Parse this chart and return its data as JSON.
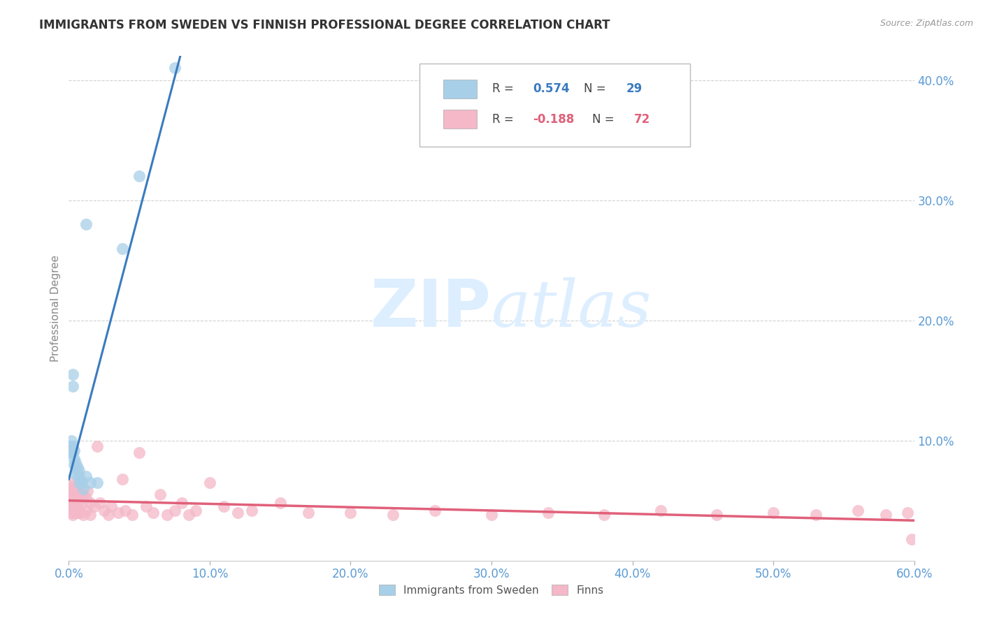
{
  "title": "IMMIGRANTS FROM SWEDEN VS FINNISH PROFESSIONAL DEGREE CORRELATION CHART",
  "source": "Source: ZipAtlas.com",
  "ylabel": "Professional Degree",
  "xlim": [
    0.0,
    0.6
  ],
  "ylim": [
    0.0,
    0.42
  ],
  "xticks": [
    0.0,
    0.1,
    0.2,
    0.3,
    0.4,
    0.5,
    0.6
  ],
  "yticks": [
    0.0,
    0.1,
    0.2,
    0.3,
    0.4
  ],
  "background_color": "#ffffff",
  "blue_color": "#a8cfe8",
  "pink_color": "#f4b8c8",
  "blue_line_color": "#3a7bbf",
  "pink_line_color": "#e0607a",
  "title_color": "#333333",
  "axis_tick_color": "#5b9bd5",
  "grid_color": "#cccccc",
  "watermark_color": "#ddeeff",
  "sweden_points_x": [
    0.001,
    0.001,
    0.002,
    0.002,
    0.002,
    0.003,
    0.003,
    0.003,
    0.003,
    0.004,
    0.004,
    0.004,
    0.005,
    0.005,
    0.005,
    0.006,
    0.006,
    0.007,
    0.007,
    0.008,
    0.009,
    0.01,
    0.012,
    0.012,
    0.015,
    0.02,
    0.038,
    0.05,
    0.075
  ],
  "sweden_points_y": [
    0.095,
    0.092,
    0.1,
    0.095,
    0.09,
    0.155,
    0.145,
    0.095,
    0.09,
    0.092,
    0.085,
    0.08,
    0.082,
    0.078,
    0.072,
    0.078,
    0.072,
    0.075,
    0.065,
    0.068,
    0.065,
    0.06,
    0.28,
    0.07,
    0.065,
    0.065,
    0.26,
    0.32,
    0.41
  ],
  "finn_points_x": [
    0.001,
    0.001,
    0.001,
    0.002,
    0.002,
    0.002,
    0.002,
    0.003,
    0.003,
    0.003,
    0.003,
    0.003,
    0.004,
    0.004,
    0.004,
    0.005,
    0.005,
    0.005,
    0.006,
    0.006,
    0.006,
    0.007,
    0.007,
    0.008,
    0.008,
    0.009,
    0.01,
    0.01,
    0.012,
    0.012,
    0.013,
    0.015,
    0.015,
    0.018,
    0.02,
    0.022,
    0.025,
    0.028,
    0.03,
    0.035,
    0.038,
    0.04,
    0.045,
    0.05,
    0.055,
    0.06,
    0.065,
    0.07,
    0.075,
    0.08,
    0.085,
    0.09,
    0.1,
    0.11,
    0.12,
    0.13,
    0.15,
    0.17,
    0.2,
    0.23,
    0.26,
    0.3,
    0.34,
    0.38,
    0.42,
    0.46,
    0.5,
    0.53,
    0.56,
    0.58,
    0.595,
    0.598
  ],
  "finn_points_y": [
    0.06,
    0.055,
    0.048,
    0.065,
    0.058,
    0.05,
    0.04,
    0.062,
    0.055,
    0.048,
    0.042,
    0.038,
    0.058,
    0.05,
    0.042,
    0.06,
    0.052,
    0.04,
    0.058,
    0.048,
    0.04,
    0.055,
    0.042,
    0.052,
    0.04,
    0.048,
    0.055,
    0.038,
    0.052,
    0.042,
    0.058,
    0.048,
    0.038,
    0.045,
    0.095,
    0.048,
    0.042,
    0.038,
    0.045,
    0.04,
    0.068,
    0.042,
    0.038,
    0.09,
    0.045,
    0.04,
    0.055,
    0.038,
    0.042,
    0.048,
    0.038,
    0.042,
    0.065,
    0.045,
    0.04,
    0.042,
    0.048,
    0.04,
    0.04,
    0.038,
    0.042,
    0.038,
    0.04,
    0.038,
    0.042,
    0.038,
    0.04,
    0.038,
    0.042,
    0.038,
    0.04,
    0.018
  ]
}
